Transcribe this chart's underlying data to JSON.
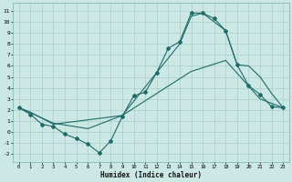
{
  "xlabel": "Humidex (Indice chaleur)",
  "bg_color": "#cce8e5",
  "grid_color": "#aacfcc",
  "line_color": "#1e6b68",
  "xlim": [
    -0.5,
    23.5
  ],
  "ylim": [
    -2.7,
    11.7
  ],
  "xticks": [
    0,
    1,
    2,
    3,
    4,
    5,
    6,
    7,
    8,
    9,
    10,
    11,
    12,
    13,
    14,
    15,
    16,
    17,
    18,
    19,
    20,
    21,
    22,
    23
  ],
  "yticks": [
    -2,
    -1,
    0,
    1,
    2,
    3,
    4,
    5,
    6,
    7,
    8,
    9,
    10,
    11
  ],
  "curve1_x": [
    0,
    1,
    2,
    3,
    4,
    5,
    6,
    7,
    8,
    9,
    10,
    11,
    12,
    13,
    14,
    15,
    16,
    17,
    18,
    19,
    20,
    21,
    22,
    23
  ],
  "curve1_y": [
    2.2,
    1.6,
    0.7,
    0.5,
    -0.2,
    -0.6,
    -1.1,
    -1.9,
    -0.8,
    1.4,
    3.3,
    3.6,
    5.4,
    7.6,
    8.2,
    10.8,
    10.8,
    10.3,
    9.2,
    6.1,
    4.2,
    3.4,
    2.3,
    2.2
  ],
  "curve2_x": [
    0,
    1,
    3,
    9,
    14,
    15,
    16,
    18,
    19,
    20,
    21,
    22,
    23
  ],
  "curve2_y": [
    2.2,
    1.8,
    0.7,
    1.5,
    8.0,
    10.5,
    10.8,
    9.2,
    6.1,
    6.0,
    5.0,
    3.5,
    2.2
  ],
  "curve3_x": [
    0,
    3,
    6,
    9,
    12,
    15,
    18,
    21,
    23
  ],
  "curve3_y": [
    2.2,
    0.8,
    0.3,
    1.5,
    3.5,
    5.5,
    6.5,
    3.0,
    2.2
  ]
}
